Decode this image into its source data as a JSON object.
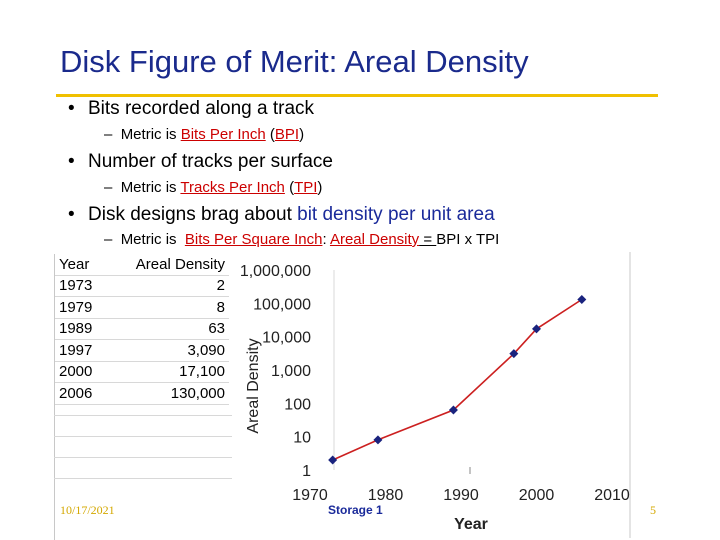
{
  "slide": {
    "title": "Disk Figure of Merit: Areal Density",
    "bullet1": "Bits recorded along a track",
    "sub1_prefix": "Metric is ",
    "sub1_link": "Bits Per Inch",
    "sub1_paren_open": " (",
    "sub1_abbr": "BPI",
    "sub1_paren_close": ")",
    "bullet2": "Number of tracks per surface",
    "sub2_prefix": "Metric is ",
    "sub2_link": "Tracks Per Inch",
    "sub2_paren_open": " (",
    "sub2_abbr": "TPI",
    "sub2_paren_close": ")",
    "bullet3_prefix": "Disk designs brag about ",
    "bullet3_highlight": "bit density per unit area",
    "sub3_prefix": "Metric is ",
    "sub3_link1": "Bits Per Square Inch",
    "sub3_colon": ": ",
    "sub3_link2": "Areal Density",
    "sub3_eq": " = ",
    "sub3_rest": "BPI x TPI",
    "bullet_dot": "•",
    "dash": "–"
  },
  "table": {
    "headers": [
      "Year",
      "Areal Density"
    ],
    "rows": [
      [
        "1973",
        "2"
      ],
      [
        "1979",
        "8"
      ],
      [
        "1989",
        "63"
      ],
      [
        "1997",
        "3,090"
      ],
      [
        "2000",
        "17,100"
      ],
      [
        "2006",
        "130,000"
      ]
    ]
  },
  "chart_data": {
    "type": "line",
    "x": [
      1973,
      1979,
      1989,
      1997,
      2000,
      2006
    ],
    "y": [
      2,
      8,
      63,
      3090,
      17100,
      130000
    ],
    "xlabel": "Year",
    "ylabel": "Areal Density",
    "xlim": [
      1970,
      2010
    ],
    "ylim": [
      1,
      1000000
    ],
    "yscale": "log",
    "xticks": [
      "1970",
      "1980",
      "1990",
      "2000",
      "2010"
    ],
    "yticks": [
      "1",
      "10",
      "100",
      "1,000",
      "10,000",
      "100,000",
      "1,000,000"
    ],
    "line_color": "#cc2020",
    "marker_color": "#1a237e",
    "grid": false,
    "legend": false
  },
  "footer": {
    "date": "10/17/2021",
    "course": "Storage 1",
    "page": "5"
  }
}
